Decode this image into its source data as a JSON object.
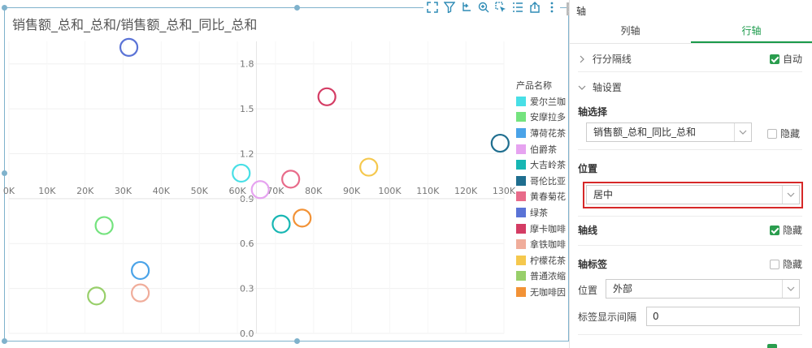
{
  "chart": {
    "title": "销售额_总和_总和/销售额_总和_同比_总和"
  },
  "toolbar": {
    "icons": [
      "fullscreen-icon",
      "filter-icon",
      "drill-icon",
      "zoom-icon",
      "select-icon",
      "list-icon",
      "export-icon",
      "more-icon"
    ]
  },
  "chart_data": {
    "type": "scatter",
    "title": "销售额_总和_总和/销售额_总和_同比_总和",
    "xlabel": "",
    "ylabel": "",
    "xlim": [
      0,
      130000
    ],
    "ylim": [
      0,
      1.95
    ],
    "x_ticks": [
      "0K",
      "10K",
      "20K",
      "30K",
      "40K",
      "50K",
      "60K",
      "70K",
      "80K",
      "90K",
      "100K",
      "110K",
      "120K",
      "130K"
    ],
    "y_ticks": [
      "0.0",
      "0.3",
      "0.6",
      "0.9",
      "1.2",
      "1.5",
      "1.8"
    ],
    "grid": true,
    "legend_title": "产品名称",
    "legend_position": "right",
    "series": [
      {
        "name": "爱尔兰咖",
        "color": "#48dfe6",
        "x": 61000,
        "y": 1.07
      },
      {
        "name": "安摩拉多",
        "color": "#74e37e",
        "x": 25000,
        "y": 0.72
      },
      {
        "name": "薄荷花茶",
        "color": "#4aa3e8",
        "x": 34500,
        "y": 0.42
      },
      {
        "name": "伯爵茶",
        "color": "#e6a3f0",
        "x": 66000,
        "y": 0.96
      },
      {
        "name": "大吉岭茶",
        "color": "#17b6b3",
        "x": 71500,
        "y": 0.73
      },
      {
        "name": "哥伦比亚",
        "color": "#1f6e8f",
        "x": 129000,
        "y": 1.27
      },
      {
        "name": "黄春菊花",
        "color": "#e86b8a",
        "x": 74000,
        "y": 1.03
      },
      {
        "name": "绿茶",
        "color": "#5a73d6",
        "x": 31500,
        "y": 1.91
      },
      {
        "name": "摩卡咖啡",
        "color": "#d43c64",
        "x": 83500,
        "y": 1.58
      },
      {
        "name": "拿铁咖啡",
        "color": "#f0ad9b",
        "x": 34500,
        "y": 0.27
      },
      {
        "name": "柠檬花茶",
        "color": "#f5c84d",
        "x": 94500,
        "y": 1.11
      },
      {
        "name": "普通浓缩",
        "color": "#98cf6a",
        "x": 23000,
        "y": 0.25
      },
      {
        "name": "无咖啡因",
        "color": "#f29236",
        "x": 77000,
        "y": 0.77
      }
    ]
  },
  "panel": {
    "title": "轴",
    "tabs": [
      "列轴",
      "行轴"
    ],
    "active_tab": 1,
    "row_divider_label": "行分隔线",
    "auto_label": "自动",
    "axis_settings_label": "轴设置",
    "axis_select_label": "轴选择",
    "axis_select_value": "销售额_总和_同比_总和",
    "hide_label": "隐藏",
    "position_label": "位置",
    "position_value": "居中",
    "axis_line_label": "轴线",
    "axis_label_label": "轴标签",
    "label_position_label": "位置",
    "label_position_value": "外部",
    "label_interval_label": "标签显示间隔",
    "label_interval_value": "0"
  }
}
